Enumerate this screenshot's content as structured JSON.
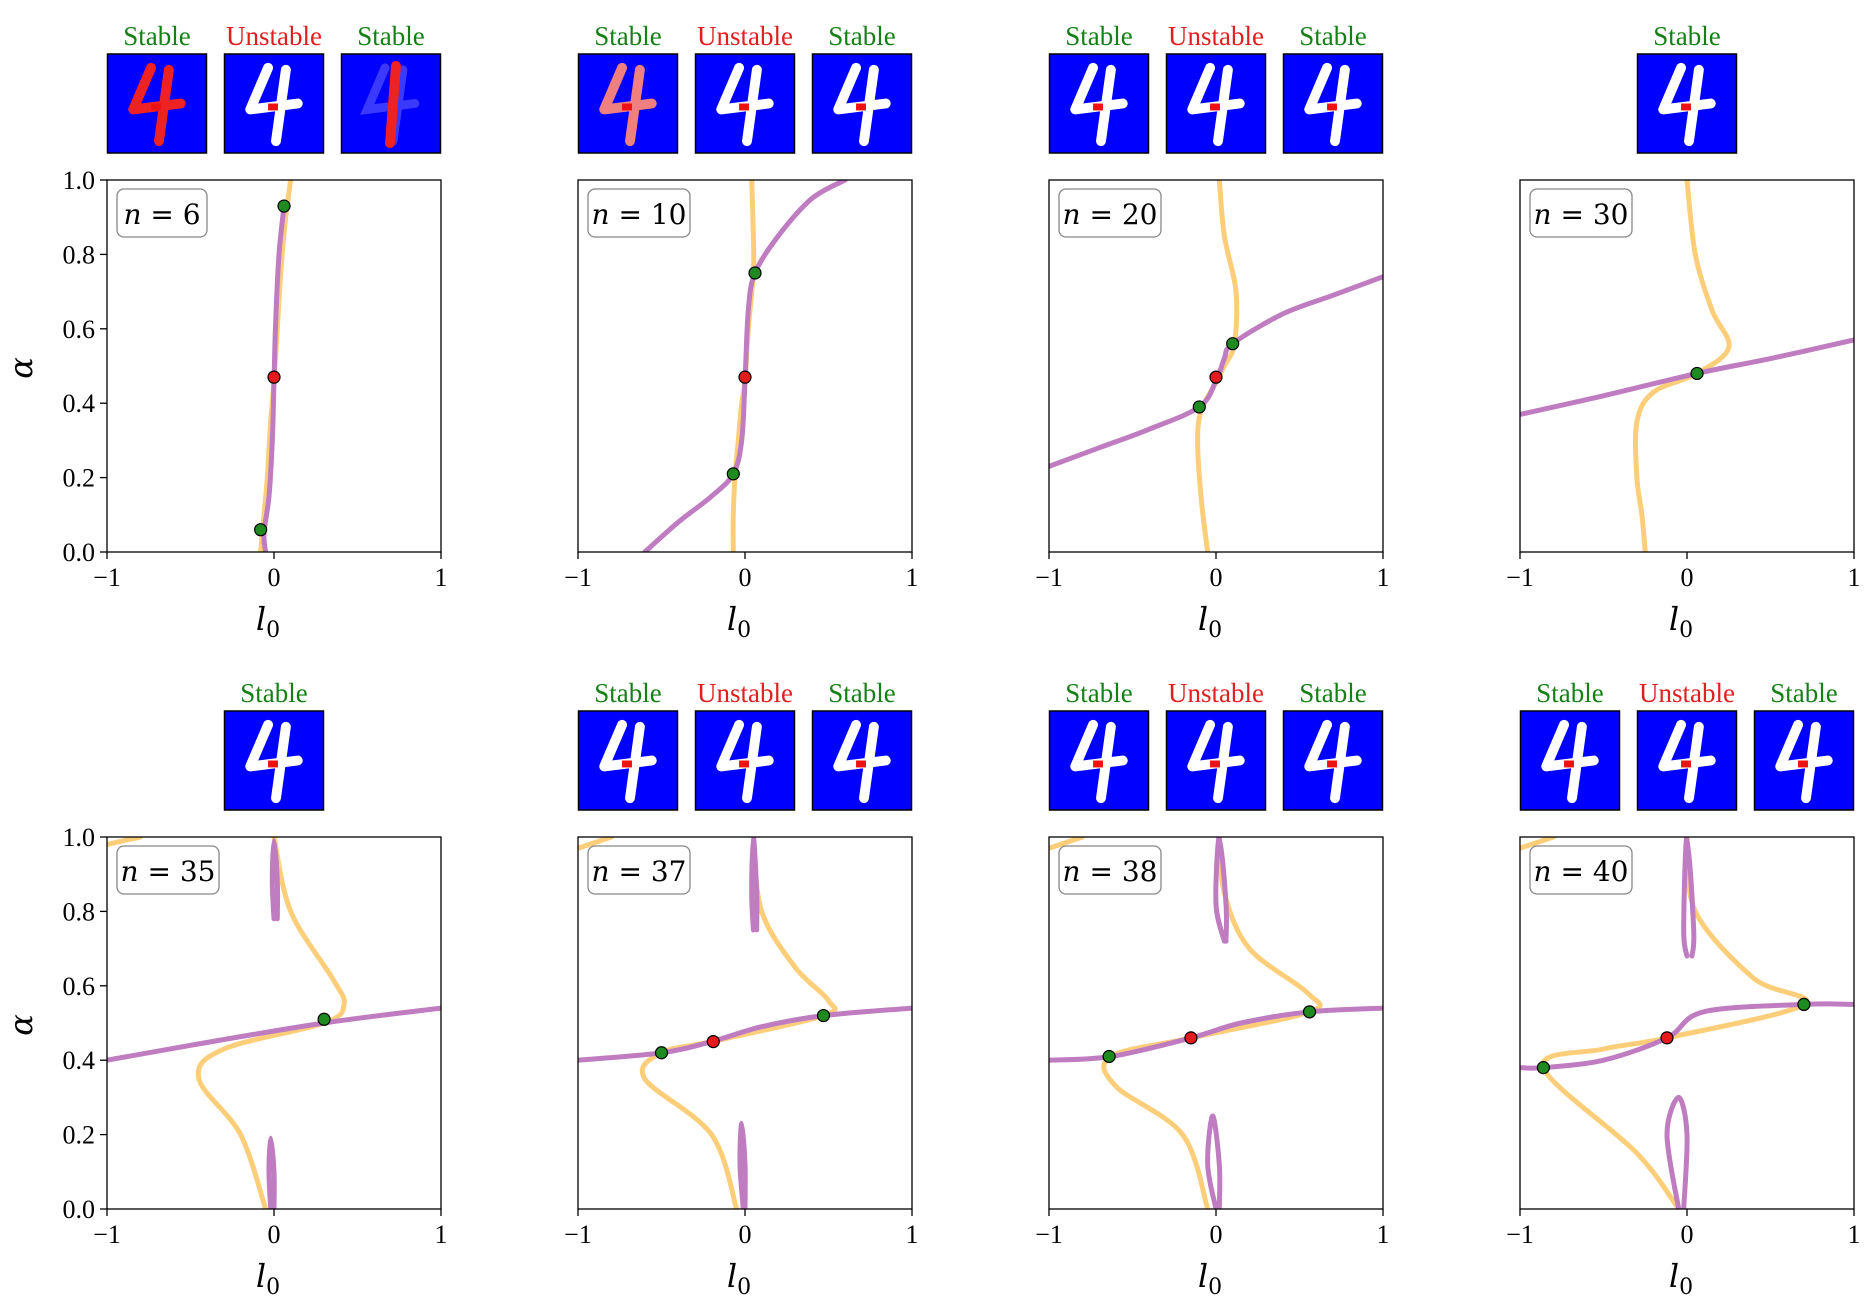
{
  "labels": {
    "xlabel": "l",
    "xlabel_sub": "0",
    "ylabel": "α",
    "n_prefix": "n = "
  },
  "colors": {
    "stable": "#1a8a1a",
    "unstable": "#e41a1c",
    "orange_curve": "#fdce7a",
    "purple_curve": "#c07cc0",
    "thumb_bg": "#0000ff"
  },
  "chart_data": [
    {
      "type": "line",
      "n": "6",
      "xlim": [
        -1,
        1
      ],
      "ylim": [
        0,
        1
      ],
      "stability": [
        "Stable",
        "Unstable",
        "Stable"
      ],
      "orange": [
        [
          -0.08,
          0.0
        ],
        [
          -0.06,
          0.1
        ],
        [
          -0.04,
          0.2
        ],
        [
          -0.02,
          0.35
        ],
        [
          0.0,
          0.46
        ],
        [
          0.02,
          0.6
        ],
        [
          0.04,
          0.75
        ],
        [
          0.07,
          0.9
        ],
        [
          0.1,
          1.0
        ]
      ],
      "purple": [
        [
          -0.05,
          0.0
        ],
        [
          -0.06,
          0.05
        ],
        [
          -0.03,
          0.15
        ],
        [
          -0.01,
          0.3
        ],
        [
          0.0,
          0.46
        ],
        [
          0.01,
          0.62
        ],
        [
          0.03,
          0.8
        ],
        [
          0.06,
          0.93
        ]
      ],
      "points": [
        [
          -0.08,
          0.06,
          "stable"
        ],
        [
          0.0,
          0.47,
          "unstable"
        ],
        [
          0.06,
          0.93,
          "stable"
        ]
      ]
    },
    {
      "type": "line",
      "n": "10",
      "xlim": [
        -1,
        1
      ],
      "ylim": [
        0,
        1
      ],
      "stability": [
        "Stable",
        "Unstable",
        "Stable"
      ],
      "orange": [
        [
          -0.07,
          0.0
        ],
        [
          -0.07,
          0.1
        ],
        [
          -0.06,
          0.2
        ],
        [
          -0.04,
          0.3
        ],
        [
          -0.02,
          0.4
        ],
        [
          0.0,
          0.46
        ],
        [
          0.02,
          0.6
        ],
        [
          0.05,
          0.75
        ],
        [
          0.05,
          0.85
        ],
        [
          0.04,
          1.0
        ]
      ],
      "purple": [
        [
          -0.6,
          0.0
        ],
        [
          -0.4,
          0.08
        ],
        [
          -0.2,
          0.15
        ],
        [
          -0.07,
          0.21
        ],
        [
          -0.02,
          0.3
        ],
        [
          0.0,
          0.46
        ],
        [
          0.02,
          0.65
        ],
        [
          0.06,
          0.75
        ],
        [
          0.2,
          0.85
        ],
        [
          0.4,
          0.95
        ],
        [
          0.6,
          1.0
        ]
      ],
      "points": [
        [
          -0.07,
          0.21,
          "stable"
        ],
        [
          0.0,
          0.47,
          "unstable"
        ],
        [
          0.06,
          0.75,
          "stable"
        ]
      ]
    },
    {
      "type": "line",
      "n": "20",
      "xlim": [
        -1,
        1
      ],
      "ylim": [
        0,
        1
      ],
      "stability": [
        "Stable",
        "Unstable",
        "Stable"
      ],
      "orange": [
        [
          -0.05,
          0.0
        ],
        [
          -0.09,
          0.15
        ],
        [
          -0.11,
          0.3
        ],
        [
          -0.09,
          0.38
        ],
        [
          -0.02,
          0.44
        ],
        [
          0.05,
          0.5
        ],
        [
          0.11,
          0.56
        ],
        [
          0.12,
          0.7
        ],
        [
          0.05,
          0.85
        ],
        [
          0.02,
          1.0
        ]
      ],
      "purple": [
        [
          -1.0,
          0.23
        ],
        [
          -0.7,
          0.28
        ],
        [
          -0.4,
          0.33
        ],
        [
          -0.1,
          0.39
        ],
        [
          0.0,
          0.46
        ],
        [
          0.05,
          0.52
        ],
        [
          0.1,
          0.56
        ],
        [
          0.4,
          0.64
        ],
        [
          0.7,
          0.69
        ],
        [
          1.0,
          0.74
        ]
      ],
      "points": [
        [
          -0.1,
          0.39,
          "stable"
        ],
        [
          0.0,
          0.47,
          "unstable"
        ],
        [
          0.1,
          0.56,
          "stable"
        ]
      ]
    },
    {
      "type": "line",
      "n": "30",
      "xlim": [
        -1,
        1
      ],
      "ylim": [
        0,
        1
      ],
      "stability": [
        "Stable"
      ],
      "orange": [
        [
          -0.25,
          0.0
        ],
        [
          -0.27,
          0.1
        ],
        [
          -0.3,
          0.2
        ],
        [
          -0.3,
          0.35
        ],
        [
          -0.2,
          0.43
        ],
        [
          0.06,
          0.48
        ],
        [
          0.25,
          0.55
        ],
        [
          0.15,
          0.65
        ],
        [
          0.05,
          0.8
        ],
        [
          0.0,
          1.0
        ]
      ],
      "purple": [
        [
          -1.0,
          0.37
        ],
        [
          -0.5,
          0.42
        ],
        [
          0.06,
          0.48
        ],
        [
          0.5,
          0.52
        ],
        [
          1.0,
          0.57
        ]
      ],
      "points": [
        [
          0.06,
          0.48,
          "stable"
        ]
      ]
    },
    {
      "type": "line",
      "n": "35",
      "xlim": [
        -1,
        1
      ],
      "ylim": [
        0,
        1
      ],
      "stability": [
        "Stable"
      ],
      "orange": [
        [
          -0.05,
          0.0
        ],
        [
          -0.2,
          0.2
        ],
        [
          -0.45,
          0.35
        ],
        [
          -0.3,
          0.43
        ],
        [
          0.3,
          0.5
        ],
        [
          0.42,
          0.55
        ],
        [
          0.35,
          0.62
        ],
        [
          0.1,
          0.8
        ],
        [
          0.0,
          1.0
        ]
      ],
      "purple": [
        [
          -1.0,
          0.4
        ],
        [
          -0.5,
          0.44
        ],
        [
          0.3,
          0.5
        ],
        [
          1.0,
          0.54
        ]
      ],
      "purple_loops": [
        [
          [
            -0.02,
            0.0
          ],
          [
            -0.03,
            0.1
          ],
          [
            -0.02,
            0.19
          ],
          [
            0.0,
            0.1
          ],
          [
            0.0,
            0.0
          ]
        ],
        [
          [
            0.0,
            0.78
          ],
          [
            -0.01,
            0.88
          ],
          [
            0.0,
            0.99
          ],
          [
            0.02,
            0.88
          ],
          [
            0.02,
            0.78
          ]
        ]
      ],
      "orange_top": [
        [
          -1.0,
          0.98
        ],
        [
          -0.8,
          1.0
        ]
      ],
      "points": [
        [
          0.3,
          0.51,
          "stable"
        ]
      ]
    },
    {
      "type": "line",
      "n": "37",
      "xlim": [
        -1,
        1
      ],
      "ylim": [
        0,
        1
      ],
      "stability": [
        "Stable",
        "Unstable",
        "Stable"
      ],
      "orange": [
        [
          -0.05,
          0.0
        ],
        [
          -0.2,
          0.2
        ],
        [
          -0.6,
          0.35
        ],
        [
          -0.5,
          0.42
        ],
        [
          -0.2,
          0.45
        ],
        [
          0.47,
          0.52
        ],
        [
          0.5,
          0.56
        ],
        [
          0.3,
          0.65
        ],
        [
          0.1,
          0.8
        ],
        [
          0.05,
          1.0
        ]
      ],
      "purple": [
        [
          -1.0,
          0.4
        ],
        [
          -0.5,
          0.42
        ],
        [
          -0.2,
          0.45
        ],
        [
          0.1,
          0.49
        ],
        [
          0.47,
          0.52
        ],
        [
          1.0,
          0.54
        ]
      ],
      "purple_loops": [
        [
          [
            -0.01,
            0.0
          ],
          [
            -0.03,
            0.12
          ],
          [
            -0.02,
            0.23
          ],
          [
            0.0,
            0.12
          ],
          [
            0.0,
            0.0
          ]
        ],
        [
          [
            0.05,
            0.75
          ],
          [
            0.04,
            0.85
          ],
          [
            0.05,
            1.0
          ],
          [
            0.07,
            0.85
          ],
          [
            0.07,
            0.75
          ]
        ]
      ],
      "orange_top": [
        [
          -1.0,
          0.97
        ],
        [
          -0.8,
          1.0
        ]
      ],
      "points": [
        [
          -0.5,
          0.42,
          "stable"
        ],
        [
          -0.19,
          0.45,
          "unstable"
        ],
        [
          0.47,
          0.52,
          "stable"
        ]
      ]
    },
    {
      "type": "line",
      "n": "38",
      "xlim": [
        -1,
        1
      ],
      "ylim": [
        0,
        1
      ],
      "stability": [
        "Stable",
        "Unstable",
        "Stable"
      ],
      "orange": [
        [
          -0.05,
          0.0
        ],
        [
          -0.2,
          0.2
        ],
        [
          -0.6,
          0.33
        ],
        [
          -0.63,
          0.41
        ],
        [
          -0.15,
          0.46
        ],
        [
          0.56,
          0.53
        ],
        [
          0.55,
          0.58
        ],
        [
          0.2,
          0.7
        ],
        [
          0.05,
          0.85
        ],
        [
          0.02,
          1.0
        ]
      ],
      "purple": [
        [
          -1.0,
          0.4
        ],
        [
          -0.63,
          0.41
        ],
        [
          -0.15,
          0.46
        ],
        [
          0.15,
          0.5
        ],
        [
          0.56,
          0.53
        ],
        [
          1.0,
          0.54
        ]
      ],
      "purple_loops": [
        [
          [
            0.0,
            0.0
          ],
          [
            -0.05,
            0.12
          ],
          [
            -0.02,
            0.25
          ],
          [
            0.02,
            0.12
          ],
          [
            0.02,
            0.0
          ]
        ],
        [
          [
            0.05,
            0.72
          ],
          [
            0.0,
            0.82
          ],
          [
            0.02,
            1.0
          ],
          [
            0.06,
            0.82
          ],
          [
            0.06,
            0.72
          ]
        ]
      ],
      "orange_top": [
        [
          -1.0,
          0.97
        ],
        [
          -0.8,
          1.0
        ]
      ],
      "points": [
        [
          -0.64,
          0.41,
          "stable"
        ],
        [
          -0.15,
          0.46,
          "unstable"
        ],
        [
          0.56,
          0.53,
          "stable"
        ]
      ]
    },
    {
      "type": "line",
      "n": "40",
      "xlim": [
        -1,
        1
      ],
      "ylim": [
        0,
        1
      ],
      "stability": [
        "Stable",
        "Unstable",
        "Stable"
      ],
      "orange": [
        [
          -0.05,
          0.0
        ],
        [
          -0.3,
          0.15
        ],
        [
          -0.86,
          0.38
        ],
        [
          -0.5,
          0.43
        ],
        [
          -0.12,
          0.46
        ],
        [
          0.7,
          0.55
        ],
        [
          0.4,
          0.62
        ],
        [
          0.05,
          0.8
        ],
        [
          0.0,
          1.0
        ]
      ],
      "purple": [
        [
          -1.0,
          0.38
        ],
        [
          -0.86,
          0.38
        ],
        [
          -0.5,
          0.4
        ],
        [
          -0.12,
          0.46
        ],
        [
          0.1,
          0.53
        ],
        [
          0.7,
          0.55
        ],
        [
          1.0,
          0.55
        ]
      ],
      "purple_loops": [
        [
          [
            -0.05,
            0.0
          ],
          [
            -0.12,
            0.2
          ],
          [
            -0.05,
            0.3
          ],
          [
            0.0,
            0.2
          ],
          [
            -0.02,
            0.0
          ]
        ],
        [
          [
            0.0,
            0.68
          ],
          [
            -0.02,
            0.75
          ],
          [
            0.0,
            1.0
          ],
          [
            0.04,
            0.75
          ],
          [
            0.03,
            0.68
          ]
        ]
      ],
      "orange_top": [
        [
          -1.0,
          0.97
        ],
        [
          -0.8,
          1.0
        ]
      ],
      "points": [
        [
          -0.86,
          0.38,
          "stable"
        ],
        [
          -0.12,
          0.46,
          "unstable"
        ],
        [
          0.7,
          0.55,
          "stable"
        ]
      ]
    }
  ]
}
